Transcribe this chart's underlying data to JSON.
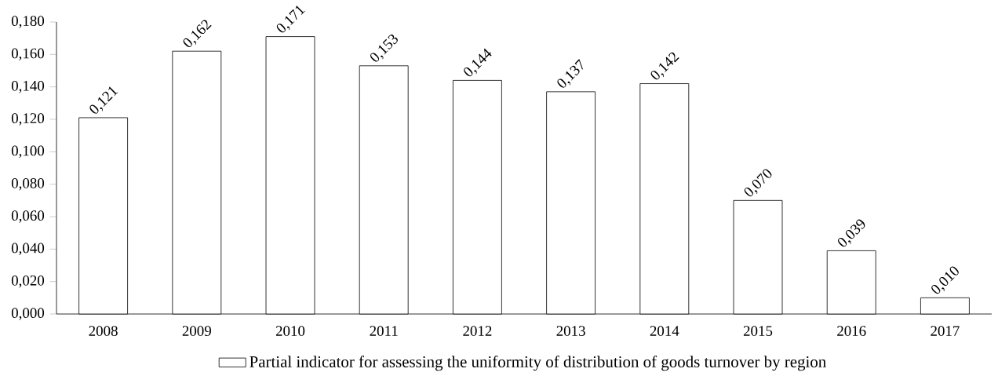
{
  "chart_data": {
    "type": "bar",
    "categories": [
      "2008",
      "2009",
      "2010",
      "2011",
      "2012",
      "2013",
      "2014",
      "2015",
      "2016",
      "2017"
    ],
    "series": [
      {
        "name": "Partial indicator for assessing the uniformity of distribution of goods turnover by region",
        "color": "#ffffff",
        "values": [
          0.121,
          0.162,
          0.171,
          0.153,
          0.144,
          0.137,
          0.142,
          0.07,
          0.039,
          0.01
        ],
        "value_labels": [
          "0,121",
          "0,162",
          "0,171",
          "0,153",
          "0,144",
          "0,137",
          "0,142",
          "0,070",
          "0,039",
          "0,010"
        ]
      }
    ],
    "ylim": [
      0,
      0.18
    ],
    "yticks": [
      {
        "value": 0,
        "label": "0,000"
      },
      {
        "value": 0.02,
        "label": "0,020"
      },
      {
        "value": 0.04,
        "label": "0,040"
      },
      {
        "value": 0.06,
        "label": "0,060"
      },
      {
        "value": 0.08,
        "label": "0,080"
      },
      {
        "value": 0.1,
        "label": "0,100"
      },
      {
        "value": 0.12,
        "label": "0,120"
      },
      {
        "value": 0.14,
        "label": "0,140"
      },
      {
        "value": 0.16,
        "label": "0,160"
      },
      {
        "value": 0.18,
        "label": "0,180"
      }
    ],
    "legend": "bottom"
  }
}
